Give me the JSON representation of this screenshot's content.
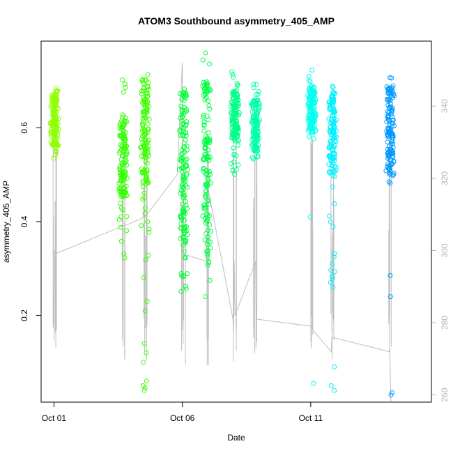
{
  "chart_data": {
    "type": "scatter",
    "title": "ATOM3 Southbound asymmetry_405_AMP",
    "xlabel": "Date",
    "ylabel": "asymmetry_405_AMP",
    "x_ticks": [
      "Oct 01",
      "Oct 06",
      "Oct 11"
    ],
    "x_tick_days": [
      1,
      6,
      11
    ],
    "xlim_days": [
      0.5,
      15.7
    ],
    "y_ticks": [
      0.2,
      0.4,
      0.6
    ],
    "ylim": [
      0.015,
      0.785
    ],
    "y2_ticks": [
      260,
      280,
      300,
      320,
      340
    ],
    "y2lim": [
      258,
      358
    ],
    "grid": false,
    "legend": "none",
    "colors": {
      "series_gradient": [
        "#8fff00",
        "#33ff00",
        "#00ff44",
        "#00ff99",
        "#00ffdd",
        "#00e5ff",
        "#0099ff"
      ],
      "secondary_line": "#bebebe",
      "axis": "#000000",
      "secondary_axis": "#b3b3b3"
    },
    "clusters": [
      {
        "day": 1.02,
        "min": 0.53,
        "max": 0.69,
        "dense_min": 0.56,
        "dense_max": 0.68,
        "color": "#8fff00",
        "outliers": []
      },
      {
        "day": 3.7,
        "min": 0.29,
        "max": 0.71,
        "dense_min": 0.45,
        "dense_max": 0.62,
        "color": "#33ff00",
        "outliers": []
      },
      {
        "day": 4.55,
        "min": 0.23,
        "max": 0.73,
        "dense_min": 0.48,
        "dense_max": 0.71,
        "color": "#3cff00",
        "outliers": [
          0.05,
          0.045,
          0.04,
          0.06,
          0.1,
          0.12,
          0.14,
          0.21,
          0.23
        ]
      },
      {
        "day": 6.05,
        "min": 0.25,
        "max": 0.71,
        "dense_min": 0.35,
        "dense_max": 0.68,
        "color": "#00ff33",
        "outliers": []
      },
      {
        "day": 6.95,
        "min": 0.22,
        "max": 0.76,
        "dense_min": 0.3,
        "dense_max": 0.7,
        "color": "#00ff44",
        "outliers": []
      },
      {
        "day": 8.05,
        "min": 0.5,
        "max": 0.72,
        "dense_min": 0.57,
        "dense_max": 0.68,
        "color": "#00ff88",
        "outliers": []
      },
      {
        "day": 8.85,
        "min": 0.53,
        "max": 0.7,
        "dense_min": 0.55,
        "dense_max": 0.66,
        "color": "#00ffaa",
        "outliers": []
      },
      {
        "day": 11.05,
        "min": 0.57,
        "max": 0.73,
        "dense_min": 0.59,
        "dense_max": 0.69,
        "color": "#00ffee",
        "outliers": [
          0.41,
          0.055
        ]
      },
      {
        "day": 11.85,
        "min": 0.27,
        "max": 0.72,
        "dense_min": 0.5,
        "dense_max": 0.68,
        "color": "#00f0ff",
        "outliers": [
          0.09,
          0.05,
          0.04,
          0.26,
          0.27
        ]
      },
      {
        "day": 14.1,
        "min": 0.47,
        "max": 0.71,
        "dense_min": 0.5,
        "dense_max": 0.69,
        "color": "#0099ff",
        "outliers": [
          0.285,
          0.24,
          0.035,
          0.03
        ]
      }
    ],
    "secondary_series": {
      "axis": "right",
      "x_days": [
        1.0,
        1.02,
        1.03,
        3.75,
        3.8,
        4.45,
        4.5,
        4.52,
        5.8,
        6.0,
        6.02,
        6.05,
        6.95,
        6.98,
        8.0,
        8.02,
        8.05,
        8.85,
        8.88,
        11.05,
        11.07,
        11.8,
        11.82,
        14.05,
        14.08,
        14.12
      ],
      "y_values": [
        275,
        300,
        299,
        307,
        307,
        309,
        310,
        309,
        321,
        352,
        300,
        299,
        297,
        318,
        280,
        297,
        282,
        297,
        281,
        279,
        278,
        272,
        276,
        272,
        273,
        258
      ]
    }
  }
}
